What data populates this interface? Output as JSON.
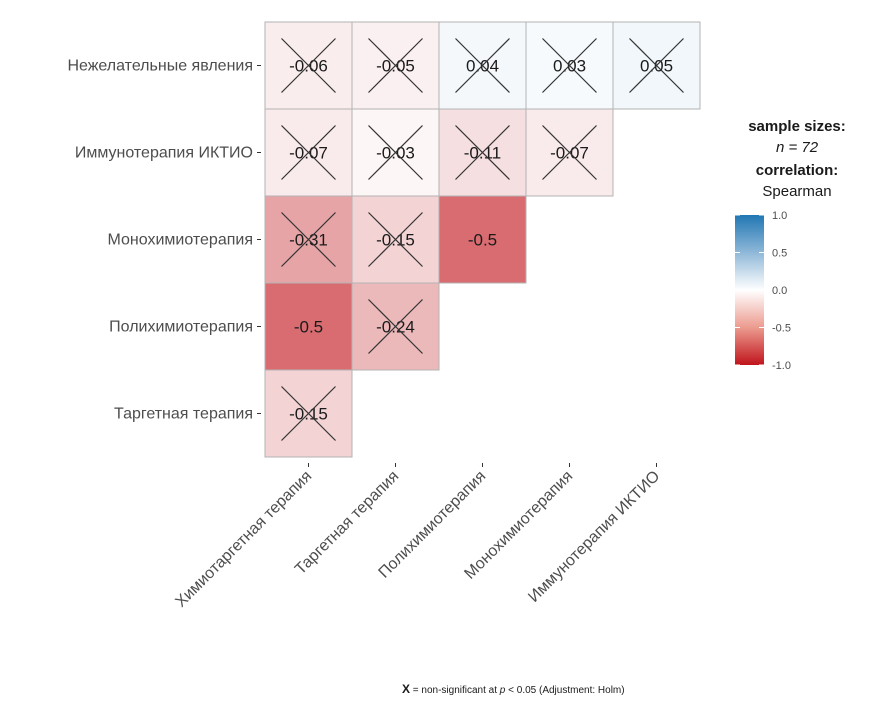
{
  "chart_data": {
    "type": "heatmap",
    "title": "",
    "method": "Spearman",
    "rows": [
      "Нежелательные явления",
      "Иммунотерапия ИКТИО",
      "Монохимиотерапия",
      "Полихимиотерапия",
      "Таргетная терапия"
    ],
    "columns": [
      "Химиотаргетная терапия",
      "Таргетная терапия",
      "Полихимиотерапия",
      "Монохимиотерапия",
      "Иммунотерапия ИКТИО"
    ],
    "cells": [
      {
        "row": 0,
        "col": 0,
        "value": -0.06,
        "label": "-0.06",
        "significant": false
      },
      {
        "row": 0,
        "col": 1,
        "value": -0.05,
        "label": "-0.05",
        "significant": false
      },
      {
        "row": 0,
        "col": 2,
        "value": 0.04,
        "label": "0.04",
        "significant": false
      },
      {
        "row": 0,
        "col": 3,
        "value": 0.03,
        "label": "0.03",
        "significant": false
      },
      {
        "row": 0,
        "col": 4,
        "value": 0.05,
        "label": "0.05",
        "significant": false
      },
      {
        "row": 1,
        "col": 0,
        "value": -0.07,
        "label": "-0.07",
        "significant": false
      },
      {
        "row": 1,
        "col": 1,
        "value": -0.03,
        "label": "-0.03",
        "significant": false
      },
      {
        "row": 1,
        "col": 2,
        "value": -0.11,
        "label": "-0.11",
        "significant": false
      },
      {
        "row": 1,
        "col": 3,
        "value": -0.07,
        "label": "-0.07",
        "significant": false
      },
      {
        "row": 2,
        "col": 0,
        "value": -0.31,
        "label": "-0.31",
        "significant": false
      },
      {
        "row": 2,
        "col": 1,
        "value": -0.15,
        "label": "-0.15",
        "significant": false
      },
      {
        "row": 2,
        "col": 2,
        "value": -0.5,
        "label": "-0.5",
        "significant": true
      },
      {
        "row": 3,
        "col": 0,
        "value": -0.5,
        "label": "-0.5",
        "significant": true
      },
      {
        "row": 3,
        "col": 1,
        "value": -0.24,
        "label": "-0.24",
        "significant": false
      },
      {
        "row": 4,
        "col": 0,
        "value": -0.15,
        "label": "-0.15",
        "significant": false
      }
    ],
    "color_scale": {
      "min": -1.0,
      "mid": 0.0,
      "max": 1.0,
      "low_color": "#c0141c",
      "mid_color": "#ffffff",
      "high_color": "#1f77b4"
    },
    "legend": {
      "title": "sample sizes:",
      "n_label": "n = 72",
      "correlation_title": "correlation:",
      "correlation_method": "Spearman",
      "ticks": [
        "1.0",
        "0.5",
        "0.0",
        "-0.5",
        "-1.0"
      ],
      "tick_values": [
        1.0,
        0.5,
        0.0,
        -0.5,
        -1.0
      ],
      "placement": "right"
    },
    "caption": {
      "marker": "X",
      "text": " = non-significant at ",
      "p": "p",
      "threshold": " < 0.05 (Adjustment: Holm)"
    }
  }
}
